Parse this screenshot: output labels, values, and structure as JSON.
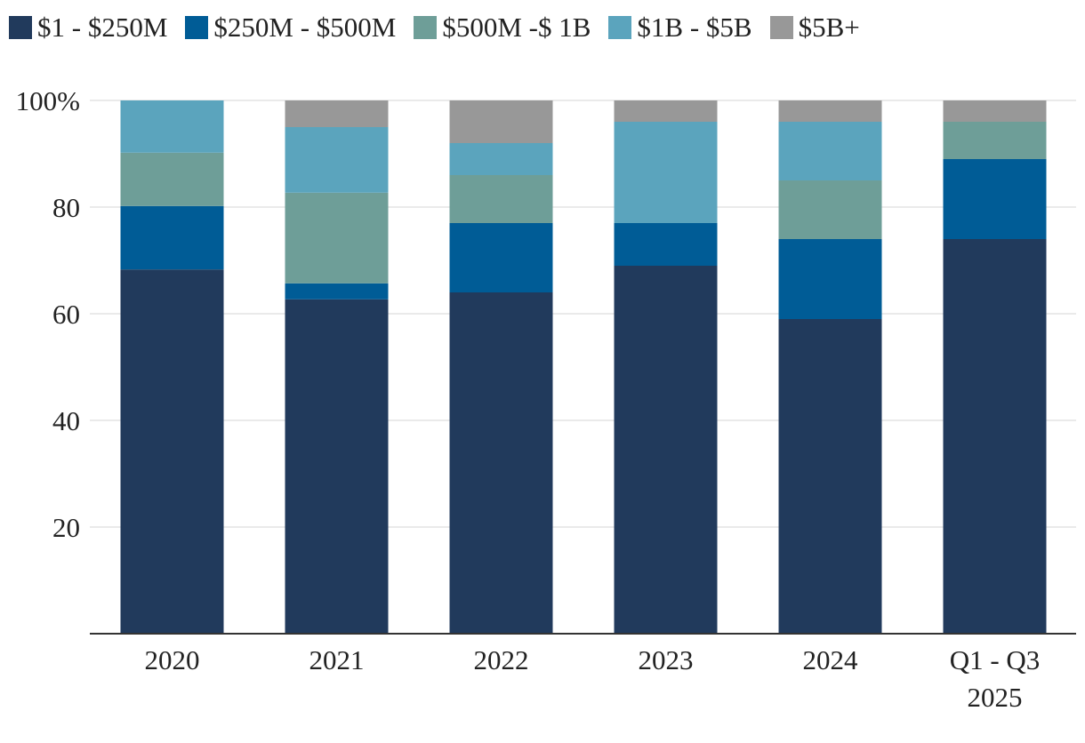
{
  "chart_data": {
    "type": "bar",
    "stacked": true,
    "categories": [
      "2020",
      "2021",
      "2022",
      "2023",
      "2024",
      [
        "Q1 - Q3",
        "2025"
      ]
    ],
    "series": [
      {
        "name": "$1 - $250M",
        "color": "#213a5c",
        "values": [
          68.3,
          62.7,
          64,
          69,
          59,
          74
        ]
      },
      {
        "name": "$250M - $500M",
        "color": "#005c96",
        "values": [
          11.9,
          3,
          13,
          8,
          15,
          15
        ]
      },
      {
        "name": "$500M -$ 1B",
        "color": "#6e9e98",
        "values": [
          10,
          17,
          9,
          0,
          11,
          7
        ]
      },
      {
        "name": "$1B - $5B",
        "color": "#5ba4bd",
        "values": [
          9.8,
          12.3,
          6,
          19,
          11,
          0
        ]
      },
      {
        "name": "$5B+",
        "color": "#989898",
        "values": [
          0,
          5,
          8,
          4,
          4,
          4
        ]
      }
    ],
    "ylim": [
      0,
      100
    ],
    "yticks": [
      20,
      40,
      60,
      80,
      100
    ],
    "ytick_labels": [
      "20",
      "40",
      "60",
      "80",
      "100%"
    ],
    "legend_position": "top-left",
    "grid": true,
    "title": "",
    "xlabel": "",
    "ylabel": ""
  }
}
